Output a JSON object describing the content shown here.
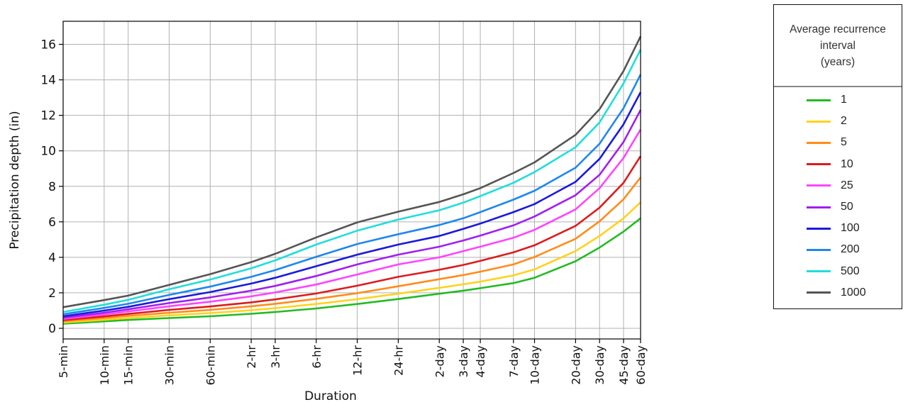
{
  "chart_data": {
    "type": "line",
    "xlabel": "Duration",
    "ylabel": "Precipitation depth (in)",
    "ylim": [
      -0.6,
      17.3
    ],
    "yticks": [
      0,
      2,
      4,
      6,
      8,
      10,
      12,
      14,
      16
    ],
    "xscale": "log",
    "grid": true,
    "legend_placement": "right (outside)",
    "legend_title": "Average recurrence\ninterval\n(years)",
    "x": [
      "5-min",
      "10-min",
      "15-min",
      "30-min",
      "60-min",
      "2-hr",
      "3-hr",
      "6-hr",
      "12-hr",
      "24-hr",
      "2-day",
      "3-day",
      "4-day",
      "7-day",
      "10-day",
      "20-day",
      "30-day",
      "45-day",
      "60-day"
    ],
    "x_minutes": [
      5,
      10,
      15,
      30,
      60,
      120,
      180,
      360,
      720,
      1440,
      2880,
      4320,
      5760,
      10080,
      14400,
      28800,
      43200,
      64800,
      86400
    ],
    "series": [
      {
        "name": "1",
        "color": "#22bb22",
        "values": [
          0.26,
          0.39,
          0.47,
          0.58,
          0.68,
          0.82,
          0.92,
          1.12,
          1.37,
          1.65,
          1.95,
          2.12,
          2.26,
          2.55,
          2.85,
          3.78,
          4.55,
          5.45,
          6.2
        ]
      },
      {
        "name": "2",
        "color": "#ffd21e",
        "values": [
          0.33,
          0.48,
          0.58,
          0.73,
          0.86,
          1.02,
          1.14,
          1.37,
          1.64,
          1.95,
          2.28,
          2.48,
          2.63,
          2.98,
          3.32,
          4.35,
          5.2,
          6.2,
          7.1
        ]
      },
      {
        "name": "5",
        "color": "#ff8c1a",
        "values": [
          0.4,
          0.58,
          0.7,
          0.88,
          1.04,
          1.24,
          1.38,
          1.66,
          1.98,
          2.37,
          2.77,
          3.0,
          3.19,
          3.6,
          4.02,
          5.04,
          6.03,
          7.27,
          8.5
        ]
      },
      {
        "name": "10",
        "color": "#dd1c1c",
        "values": [
          0.46,
          0.67,
          0.81,
          1.04,
          1.23,
          1.46,
          1.63,
          1.96,
          2.4,
          2.9,
          3.3,
          3.57,
          3.8,
          4.28,
          4.68,
          5.77,
          6.8,
          8.2,
          9.7
        ]
      },
      {
        "name": "25",
        "color": "#ff44ff",
        "values": [
          0.53,
          0.78,
          0.95,
          1.24,
          1.5,
          1.8,
          2.02,
          2.47,
          3.03,
          3.6,
          4.0,
          4.35,
          4.6,
          5.1,
          5.55,
          6.7,
          7.9,
          9.6,
          11.2
        ]
      },
      {
        "name": "50",
        "color": "#a020f0",
        "values": [
          0.6,
          0.88,
          1.07,
          1.42,
          1.74,
          2.12,
          2.39,
          2.95,
          3.6,
          4.15,
          4.6,
          4.95,
          5.22,
          5.8,
          6.3,
          7.5,
          8.65,
          10.5,
          12.3
        ]
      },
      {
        "name": "100",
        "color": "#1a1add",
        "values": [
          0.68,
          1.0,
          1.21,
          1.64,
          2.04,
          2.52,
          2.85,
          3.5,
          4.15,
          4.72,
          5.2,
          5.6,
          5.9,
          6.55,
          7.0,
          8.25,
          9.55,
          11.5,
          13.3
        ]
      },
      {
        "name": "200",
        "color": "#1e88ee",
        "values": [
          0.79,
          1.15,
          1.38,
          1.88,
          2.35,
          2.9,
          3.28,
          4.03,
          4.75,
          5.3,
          5.82,
          6.2,
          6.55,
          7.25,
          7.75,
          9.05,
          10.4,
          12.4,
          14.3
        ]
      },
      {
        "name": "500",
        "color": "#22dddd",
        "values": [
          0.92,
          1.33,
          1.6,
          2.2,
          2.75,
          3.38,
          3.83,
          4.72,
          5.5,
          6.13,
          6.65,
          7.08,
          7.45,
          8.2,
          8.8,
          10.2,
          11.6,
          13.8,
          15.7
        ]
      },
      {
        "name": "1000",
        "color": "#555555",
        "values": [
          1.19,
          1.59,
          1.84,
          2.45,
          3.05,
          3.73,
          4.2,
          5.12,
          5.97,
          6.57,
          7.12,
          7.55,
          7.9,
          8.75,
          9.35,
          10.9,
          12.35,
          14.5,
          16.45
        ]
      }
    ]
  }
}
